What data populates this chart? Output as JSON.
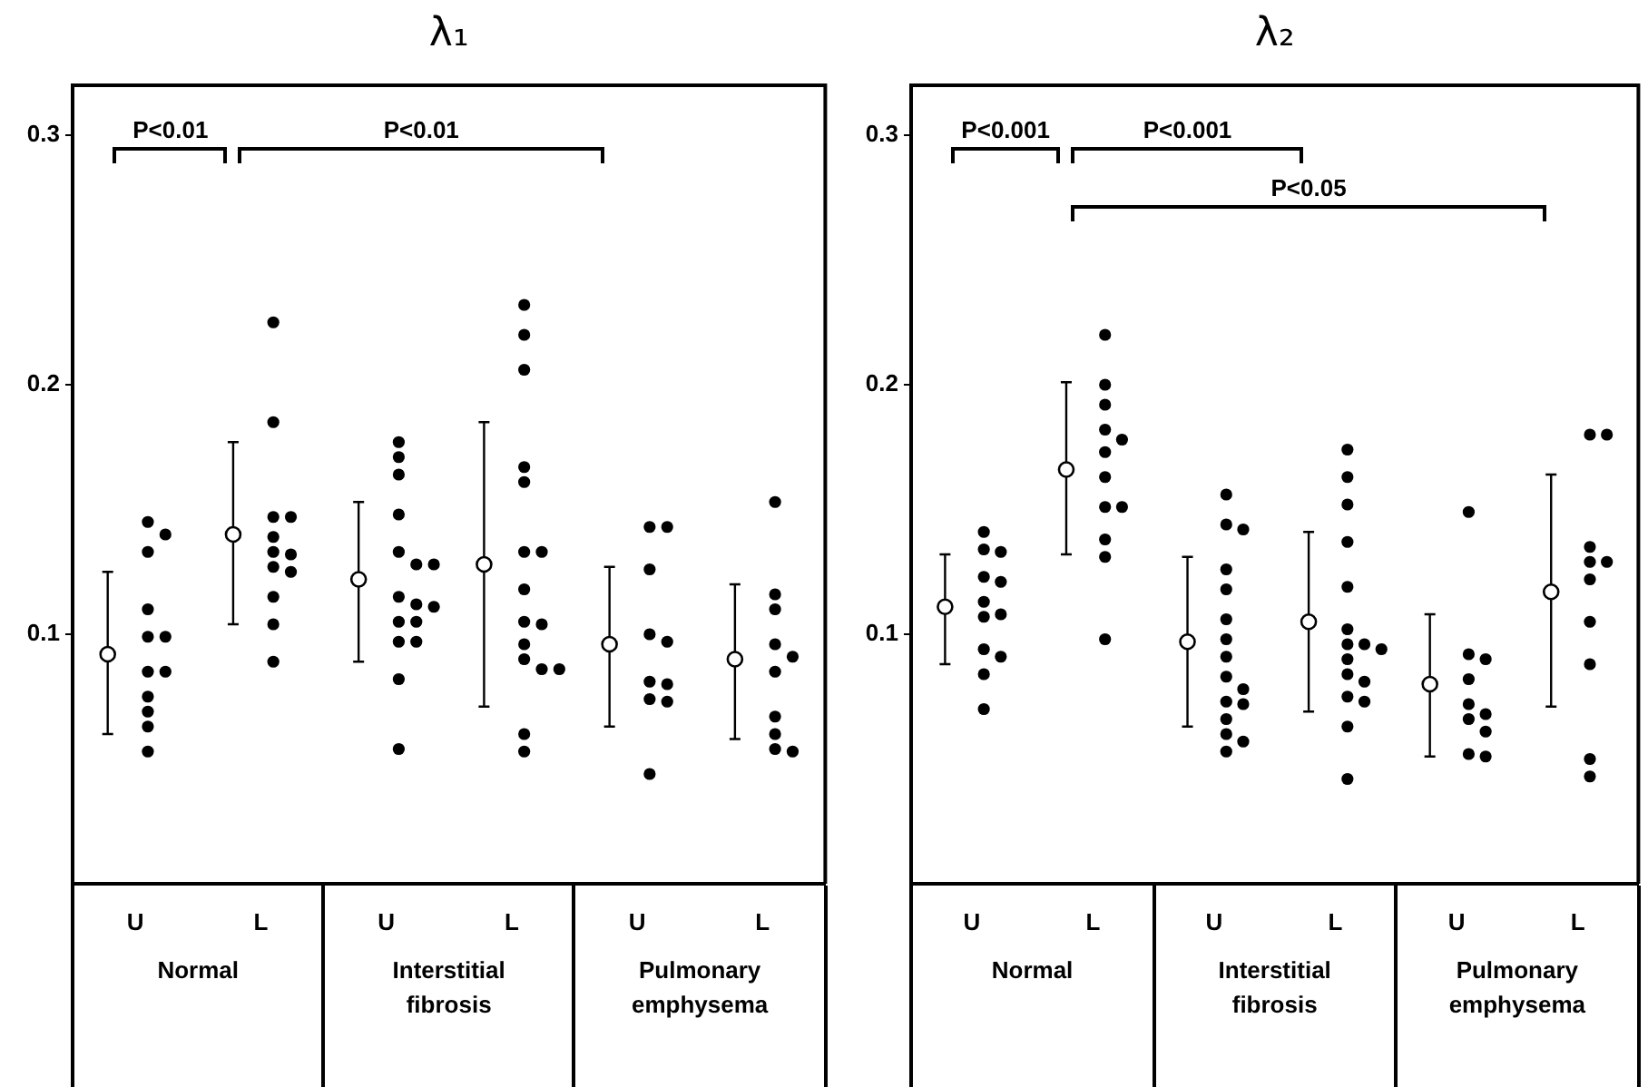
{
  "chart_data": [
    {
      "type": "scatter",
      "title": "λ₁",
      "categories": [
        "U",
        "L",
        "U",
        "L",
        "U",
        "L"
      ],
      "ylim": [
        0,
        0.32
      ],
      "yticks": [
        0.1,
        0.2,
        0.3
      ],
      "marker": "circle",
      "annotations": [
        "Normal",
        "Interstitial fibrosis",
        "Pulmonary emphysema",
        "P<0.01",
        "P<0.01"
      ],
      "series": [
        {
          "type": "scatter",
          "color": "#000000",
          "values": [
            0.092,
            0.14,
            0.122,
            0.128,
            0.096,
            0.09
          ],
          "errors": [
            [
              0.06,
              0.125
            ],
            [
              0.104,
              0.177
            ],
            [
              0.089,
              0.153
            ],
            [
              0.071,
              0.185
            ],
            [
              0.063,
              0.127
            ],
            [
              0.058,
              0.12
            ]
          ]
        },
        {
          "color": "#000000",
          "values": [
            0.145,
            0.225,
            0.177,
            0.232,
            0.143,
            0.153
          ]
        },
        {
          "color": "#000000",
          "values": [
            0.14,
            0.185,
            0.171,
            0.22,
            0.143,
            0.116
          ]
        },
        {
          "color": "#000000",
          "values": [
            0.133,
            0.147,
            0.164,
            0.206,
            0.126,
            0.11
          ]
        },
        {
          "color": "#000000",
          "values": [
            0.11,
            0.147,
            0.148,
            0.167,
            0.1,
            0.096
          ]
        },
        {
          "color": "#000000",
          "values": [
            0.099,
            0.139,
            0.133,
            0.161,
            0.097,
            0.091
          ]
        },
        {
          "color": "#000000",
          "values": [
            0.099,
            0.133,
            0.128,
            0.133,
            0.081,
            0.085
          ]
        },
        {
          "color": "#000000",
          "values": [
            0.085,
            0.132,
            0.128,
            0.133,
            0.08,
            0.067
          ]
        },
        {
          "color": "#000000",
          "values": [
            0.085,
            0.127,
            0.115,
            0.118,
            0.074,
            0.06
          ]
        },
        {
          "color": "#000000",
          "values": [
            0.075,
            0.125,
            0.112,
            0.105,
            0.073,
            0.054
          ]
        },
        {
          "color": "#000000",
          "values": [
            0.069,
            0.115,
            0.111,
            0.104,
            0.044,
            0.053
          ]
        },
        {
          "color": "#000000",
          "values": [
            0.063,
            0.104,
            0.105,
            0.096,
            null,
            null
          ]
        },
        {
          "color": "#000000",
          "values": [
            0.053,
            0.089,
            0.105,
            0.09,
            null,
            null
          ]
        },
        {
          "color": "#000000",
          "values": [
            null,
            null,
            0.097,
            0.086,
            null,
            null
          ]
        },
        {
          "color": "#000000",
          "values": [
            null,
            null,
            0.097,
            0.086,
            null,
            null
          ]
        },
        {
          "color": "#000000",
          "values": [
            null,
            null,
            0.082,
            0.06,
            null,
            null
          ]
        },
        {
          "color": "#000000",
          "values": [
            null,
            null,
            0.054,
            0.053,
            null,
            null
          ]
        }
      ]
    },
    {
      "type": "scatter",
      "title": "λ₂",
      "categories": [
        "U",
        "L",
        "U",
        "L",
        "U",
        "L"
      ],
      "ylim": [
        0,
        0.32
      ],
      "yticks": [
        0.1,
        0.2,
        0.3
      ],
      "marker": "circle",
      "annotations": [
        "Normal",
        "Interstitial fibrosis",
        "Pulmonary emphysema",
        "P<0.001",
        "P<0.001",
        "P<0.05"
      ],
      "series": [
        {
          "type": "scatter",
          "color": "#000000",
          "values": [
            0.111,
            0.166,
            0.097,
            0.105,
            0.08,
            0.117
          ],
          "errors": [
            [
              0.088,
              0.132
            ],
            [
              0.132,
              0.201
            ],
            [
              0.063,
              0.131
            ],
            [
              0.069,
              0.141
            ],
            [
              0.051,
              0.108
            ],
            [
              0.071,
              0.164
            ]
          ]
        },
        {
          "color": "#000000",
          "values": [
            0.141,
            0.22,
            0.156,
            0.174,
            0.149,
            0.18
          ]
        },
        {
          "color": "#000000",
          "values": [
            0.134,
            0.2,
            0.144,
            0.163,
            0.092,
            0.18
          ]
        },
        {
          "color": "#000000",
          "values": [
            0.133,
            0.192,
            0.142,
            0.152,
            0.09,
            0.135
          ]
        },
        {
          "color": "#000000",
          "values": [
            0.123,
            0.182,
            0.126,
            0.137,
            0.082,
            0.129
          ]
        },
        {
          "color": "#000000",
          "values": [
            0.121,
            0.178,
            0.118,
            0.119,
            0.072,
            0.129
          ]
        },
        {
          "color": "#000000",
          "values": [
            0.113,
            0.173,
            0.106,
            0.102,
            0.068,
            0.122
          ]
        },
        {
          "color": "#000000",
          "values": [
            0.108,
            0.163,
            0.098,
            0.096,
            0.066,
            0.105
          ]
        },
        {
          "color": "#000000",
          "values": [
            0.107,
            0.151,
            0.091,
            0.096,
            0.061,
            0.088
          ]
        },
        {
          "color": "#000000",
          "values": [
            0.094,
            0.151,
            0.083,
            0.094,
            0.052,
            0.05
          ]
        },
        {
          "color": "#000000",
          "values": [
            0.091,
            0.138,
            0.078,
            0.09,
            0.051,
            0.043
          ]
        },
        {
          "color": "#000000",
          "values": [
            0.084,
            0.131,
            0.073,
            0.084,
            null,
            null
          ]
        },
        {
          "color": "#000000",
          "values": [
            0.07,
            0.098,
            0.072,
            0.081,
            null,
            null
          ]
        },
        {
          "color": "#000000",
          "values": [
            null,
            null,
            0.066,
            0.075,
            null,
            null
          ]
        },
        {
          "color": "#000000",
          "values": [
            null,
            null,
            0.06,
            0.073,
            null,
            null
          ]
        },
        {
          "color": "#000000",
          "values": [
            null,
            null,
            0.057,
            0.063,
            null,
            null
          ]
        },
        {
          "color": "#000000",
          "values": [
            null,
            null,
            0.053,
            0.042,
            null,
            null
          ]
        }
      ]
    }
  ]
}
